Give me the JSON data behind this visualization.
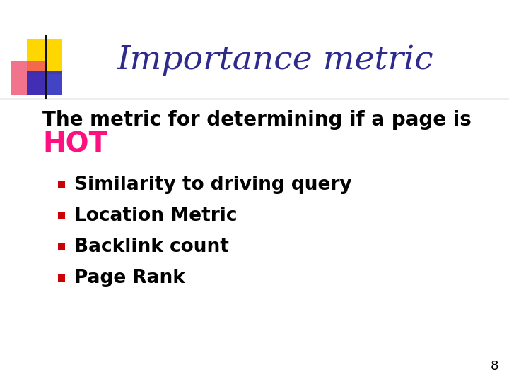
{
  "title": "Importance metric",
  "title_color": "#2E2B8C",
  "title_fontsize": 34,
  "subtitle": "The metric for determining if a page is",
  "subtitle_fontsize": 20,
  "hot_text": "HOT",
  "hot_color": "#FF1080",
  "hot_fontsize": 28,
  "bullet_items": [
    "Similarity to driving query",
    "Location Metric",
    "Backlink count",
    "Page Rank"
  ],
  "bullet_color": "#CC0000",
  "bullet_fontsize": 19,
  "text_color": "#000000",
  "background_color": "#FFFFFF",
  "page_number": "8",
  "logo_colors": {
    "yellow": "#FFD700",
    "pink_red": "#EE4466",
    "blue": "#2222BB"
  },
  "line_color": "#AAAAAA"
}
